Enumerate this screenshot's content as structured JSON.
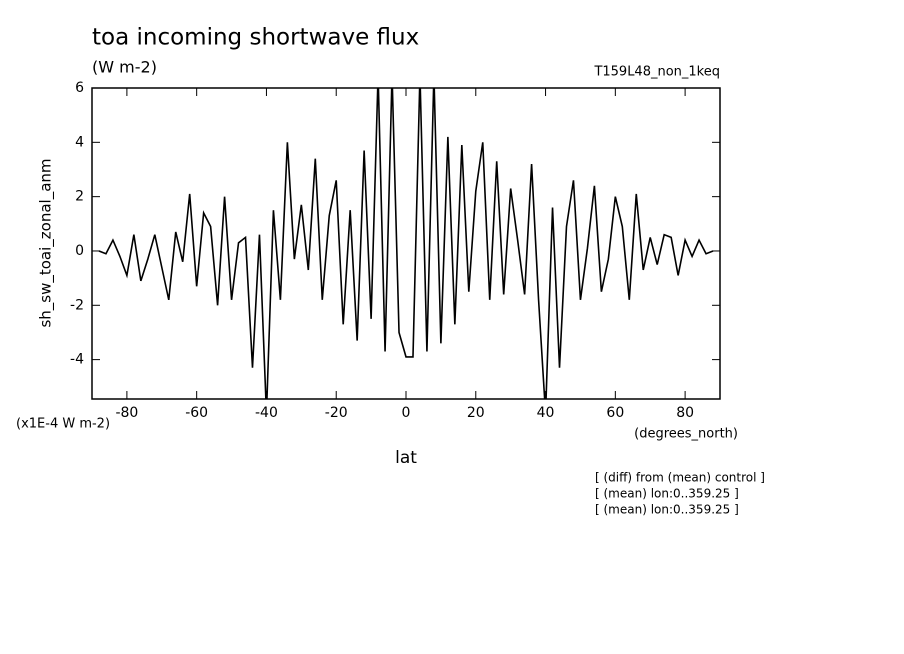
{
  "chart_data": {
    "type": "line",
    "title": "toa incoming shortwave flux",
    "subtitle": "(W m-2)",
    "run_label": "T159L48_non_1keq",
    "y_label": "sh_sw_toai_zonal_anm",
    "y_unit": "(x1E-4 W m-2)",
    "x_label": "lat",
    "x_unit": "(degrees_north)",
    "annotations": [
      "[ (diff) from (mean) control ]",
      "[ (mean) lon:0..359.25 ]",
      "[ (mean) lon:0..359.25 ]"
    ],
    "x": [
      -88,
      -86,
      -84,
      -82,
      -80,
      -78,
      -76,
      -74,
      -72,
      -70,
      -68,
      -66,
      -64,
      -62,
      -60,
      -58,
      -56,
      -54,
      -52,
      -50,
      -48,
      -46,
      -44,
      -42,
      -40,
      -38,
      -36,
      -34,
      -32,
      -30,
      -28,
      -26,
      -24,
      -22,
      -20,
      -18,
      -16,
      -14,
      -12,
      -10,
      -8,
      -6,
      -4,
      -2,
      0,
      2,
      4,
      6,
      8,
      10,
      12,
      14,
      16,
      18,
      20,
      22,
      24,
      26,
      28,
      30,
      32,
      34,
      36,
      38,
      40,
      42,
      44,
      46,
      48,
      50,
      52,
      54,
      56,
      58,
      60,
      62,
      64,
      66,
      68,
      70,
      72,
      74,
      76,
      78,
      80,
      82,
      84,
      86,
      88
    ],
    "series": [
      {
        "name": "sh_sw_toai_zonal_anm",
        "color": "#000000",
        "values": [
          0,
          -0.1,
          0.4,
          -0.2,
          -0.9,
          0.6,
          -1.1,
          -0.3,
          0.6,
          -0.6,
          -1.8,
          0.7,
          -0.4,
          2.1,
          -1.3,
          1.4,
          0.9,
          -2.0,
          2.0,
          -1.8,
          0.3,
          0.5,
          -4.3,
          0.6,
          -6.0,
          1.5,
          -1.8,
          4.0,
          -0.3,
          1.7,
          -0.7,
          3.4,
          -1.8,
          1.3,
          2.6,
          -2.7,
          1.5,
          -3.3,
          3.7,
          -2.5,
          6.5,
          -3.7,
          6.5,
          -3.0,
          -3.9,
          -3.9,
          6.5,
          -3.7,
          6.5,
          -3.4,
          4.2,
          -2.7,
          3.9,
          -1.5,
          2.2,
          4.0,
          -1.8,
          3.3,
          -1.6,
          2.3,
          0.4,
          -1.6,
          3.2,
          -1.8,
          -6.0,
          1.6,
          -4.3,
          0.9,
          2.6,
          -1.8,
          0.1,
          2.4,
          -1.5,
          -0.3,
          2.0,
          0.9,
          -1.8,
          2.1,
          -0.7,
          0.5,
          -0.5,
          0.6,
          0.5,
          -0.9,
          0.4,
          -0.2,
          0.4,
          -0.1,
          0
        ]
      }
    ],
    "xlim": [
      -90,
      90
    ],
    "ylim": [
      -5.45,
      6
    ],
    "xticks": [
      -80,
      -60,
      -40,
      -20,
      0,
      20,
      40,
      60,
      80
    ],
    "yticks": [
      -4,
      -2,
      0,
      2,
      4,
      6
    ]
  }
}
